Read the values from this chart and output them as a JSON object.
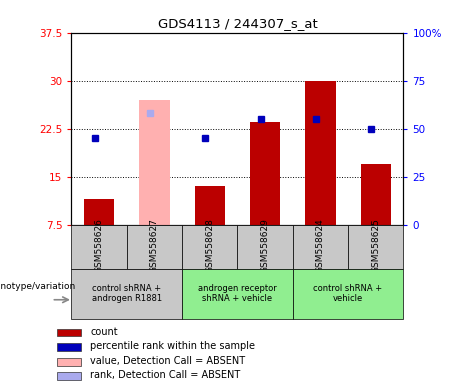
{
  "title": "GDS4113 / 244307_s_at",
  "samples": [
    "GSM558626",
    "GSM558627",
    "GSM558628",
    "GSM558629",
    "GSM558624",
    "GSM558625"
  ],
  "count_values": [
    11.5,
    null,
    13.5,
    23.5,
    30.0,
    17.0
  ],
  "count_absent": [
    null,
    27.0,
    null,
    null,
    null,
    null
  ],
  "rank_values_left": [
    21.0,
    null,
    21.0,
    24.0,
    24.0,
    22.5
  ],
  "rank_absent_left": [
    null,
    25.0,
    null,
    null,
    null,
    null
  ],
  "ylim_left": [
    7.5,
    37.5
  ],
  "ylim_right": [
    0,
    100
  ],
  "yticks_left": [
    7.5,
    15.0,
    22.5,
    30.0,
    37.5
  ],
  "yticks_right": [
    0,
    25,
    50,
    75,
    100
  ],
  "ytick_labels_left": [
    "7.5",
    "15",
    "22.5",
    "30",
    "37.5"
  ],
  "ytick_labels_right": [
    "0",
    "25",
    "50",
    "75",
    "100%"
  ],
  "bar_color_red": "#bb0000",
  "bar_color_pink": "#ffb0b0",
  "marker_color_blue": "#0000bb",
  "marker_color_lightblue": "#aaaaee",
  "sample_bg_color": "#c8c8c8",
  "group_colors": [
    "#c8c8c8",
    "#90ee90",
    "#90ee90"
  ],
  "group_ranges": [
    [
      0,
      2
    ],
    [
      2,
      4
    ],
    [
      4,
      6
    ]
  ],
  "group_labels": [
    "control shRNA +\nandrogen R1881",
    "androgen receptor\nshRNA + vehicle",
    "control shRNA +\nvehicle"
  ],
  "legend_items": [
    {
      "color": "#bb0000",
      "label": "count"
    },
    {
      "color": "#0000bb",
      "label": "percentile rank within the sample"
    },
    {
      "color": "#ffb0b0",
      "label": "value, Detection Call = ABSENT"
    },
    {
      "color": "#aaaaee",
      "label": "rank, Detection Call = ABSENT"
    }
  ],
  "xlabel_genotype": "genotype/variation",
  "bar_width": 0.55
}
